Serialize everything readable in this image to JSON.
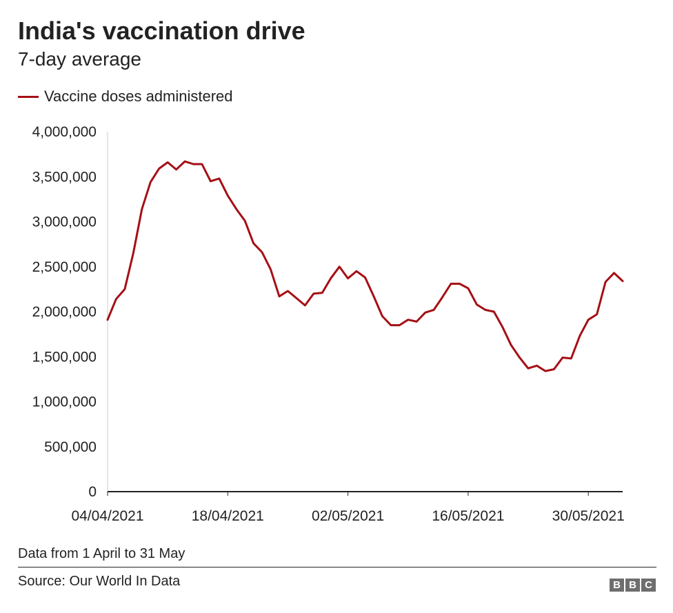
{
  "header": {
    "title": "India's vaccination drive",
    "subtitle": "7-day average"
  },
  "footer": {
    "note": "Data from 1 April to 31 May",
    "source": "Source: Our World In Data",
    "logo": [
      "B",
      "B",
      "C"
    ]
  },
  "colors": {
    "series": "#a50f15",
    "axis": "#222222",
    "gridline": "#cccccc"
  },
  "chart_data": {
    "type": "line",
    "title": "India's vaccination drive",
    "subtitle": "7-day average",
    "xlabel": "",
    "ylabel": "",
    "ylim": [
      0,
      4000000
    ],
    "xlim": [
      "2021-04-04",
      "2021-06-03"
    ],
    "yticks": [
      0,
      500000,
      1000000,
      1500000,
      2000000,
      2500000,
      3000000,
      3500000,
      4000000
    ],
    "ytick_labels": [
      "0",
      "500,000",
      "1,000,000",
      "1,500,000",
      "2,000,000",
      "2,500,000",
      "3,000,000",
      "3,500,000",
      "4,000,000"
    ],
    "xtick_labels": [
      "04/04/2021",
      "18/04/2021",
      "02/05/2021",
      "16/05/2021",
      "30/05/2021"
    ],
    "xtick_dates": [
      "2021-04-04",
      "2021-04-18",
      "2021-05-02",
      "2021-05-16",
      "2021-05-30"
    ],
    "grid": false,
    "legend_position": "top-left",
    "series": [
      {
        "name": "Vaccine doses administered",
        "color": "#a50f15",
        "x": [
          "2021-04-04",
          "2021-04-05",
          "2021-04-06",
          "2021-04-07",
          "2021-04-08",
          "2021-04-09",
          "2021-04-10",
          "2021-04-11",
          "2021-04-12",
          "2021-04-13",
          "2021-04-14",
          "2021-04-15",
          "2021-04-16",
          "2021-04-17",
          "2021-04-18",
          "2021-04-19",
          "2021-04-20",
          "2021-04-21",
          "2021-04-22",
          "2021-04-23",
          "2021-04-24",
          "2021-04-25",
          "2021-04-26",
          "2021-04-27",
          "2021-04-28",
          "2021-04-29",
          "2021-04-30",
          "2021-05-01",
          "2021-05-02",
          "2021-05-03",
          "2021-05-04",
          "2021-05-05",
          "2021-05-06",
          "2021-05-07",
          "2021-05-08",
          "2021-05-09",
          "2021-05-10",
          "2021-05-11",
          "2021-05-12",
          "2021-05-13",
          "2021-05-14",
          "2021-05-15",
          "2021-05-16",
          "2021-05-17",
          "2021-05-18",
          "2021-05-19",
          "2021-05-20",
          "2021-05-21",
          "2021-05-22",
          "2021-05-23",
          "2021-05-24",
          "2021-05-25",
          "2021-05-26",
          "2021-05-27",
          "2021-05-28",
          "2021-05-29",
          "2021-05-30",
          "2021-05-31",
          "2021-06-01",
          "2021-06-02",
          "2021-06-03"
        ],
        "y": [
          1910000,
          2140000,
          2250000,
          2650000,
          3140000,
          3440000,
          3590000,
          3660000,
          3580000,
          3670000,
          3640000,
          3640000,
          3450000,
          3480000,
          3290000,
          3140000,
          3010000,
          2760000,
          2660000,
          2470000,
          2170000,
          2230000,
          2150000,
          2070000,
          2200000,
          2210000,
          2370000,
          2500000,
          2370000,
          2450000,
          2380000,
          2170000,
          1950000,
          1850000,
          1850000,
          1910000,
          1890000,
          1990000,
          2020000,
          2160000,
          2310000,
          2310000,
          2260000,
          2080000,
          2020000,
          2000000,
          1830000,
          1630000,
          1490000,
          1370000,
          1400000,
          1340000,
          1360000,
          1490000,
          1480000,
          1730000,
          1910000,
          1970000,
          2330000,
          2430000,
          2340000
        ]
      }
    ]
  }
}
